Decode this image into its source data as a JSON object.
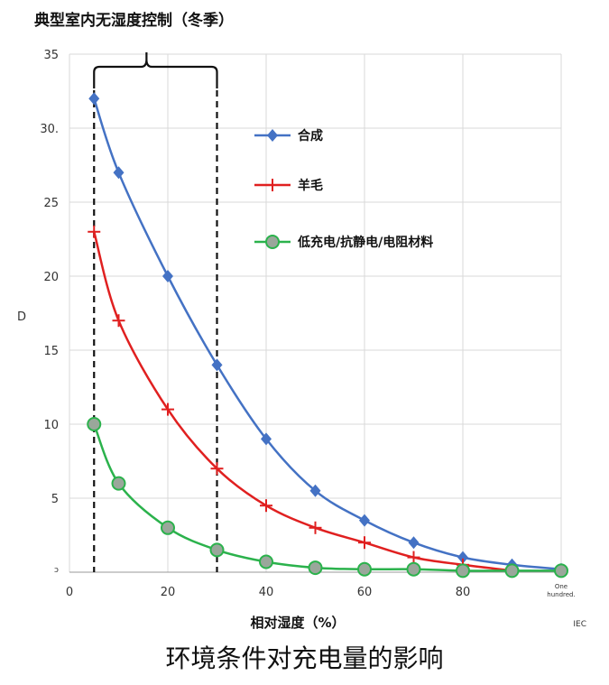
{
  "chart_data": {
    "type": "line",
    "title": "典型室内无湿度控制（冬季）",
    "xlabel": "相对湿度（%）",
    "ylabel": "D",
    "xlim": [
      0,
      100
    ],
    "ylim": [
      0,
      35
    ],
    "x_ticks": [
      {
        "value": 0,
        "label": "0"
      },
      {
        "value": 20,
        "label": "20"
      },
      {
        "value": 40,
        "label": "40"
      },
      {
        "value": 60,
        "label": "60"
      },
      {
        "value": 80,
        "label": "80"
      },
      {
        "value": 100,
        "label": "One hundred."
      }
    ],
    "y_ticks": [
      {
        "value": 0,
        "label": "ɔ"
      },
      {
        "value": 5,
        "label": "5"
      },
      {
        "value": 10,
        "label": "10"
      },
      {
        "value": 15,
        "label": "15"
      },
      {
        "value": 20,
        "label": "20"
      },
      {
        "value": 25,
        "label": "25"
      },
      {
        "value": 30,
        "label": "30."
      },
      {
        "value": 35,
        "label": "35"
      }
    ],
    "grid": true,
    "legend_position": "top-right",
    "highlight_range": [
      5,
      30
    ],
    "series": [
      {
        "name": "合成",
        "color": "#4472c4",
        "marker": "diamond",
        "x": [
          5,
          10,
          20,
          30,
          40,
          50,
          60,
          70,
          80,
          90,
          100
        ],
        "y": [
          32,
          27,
          20,
          14,
          9,
          5.5,
          3.5,
          2,
          1,
          0.5,
          0.2
        ]
      },
      {
        "name": "羊毛",
        "color": "#e02020",
        "marker": "plus",
        "x": [
          5,
          10,
          20,
          30,
          40,
          50,
          60,
          70,
          80,
          90
        ],
        "y": [
          23,
          17,
          11,
          7,
          4.5,
          3,
          2,
          1,
          0.5,
          0.1
        ]
      },
      {
        "name": "低充电/抗静电/电阻材料",
        "color": "#2bb24c",
        "marker": "circle",
        "x": [
          5,
          10,
          20,
          30,
          40,
          50,
          60,
          70,
          80,
          90,
          100
        ],
        "y": [
          10,
          6,
          3,
          1.5,
          0.7,
          0.3,
          0.2,
          0.2,
          0.1,
          0.1,
          0.1
        ]
      }
    ],
    "corner_label": "IEC"
  },
  "caption": "环境条件对充电量的影响"
}
